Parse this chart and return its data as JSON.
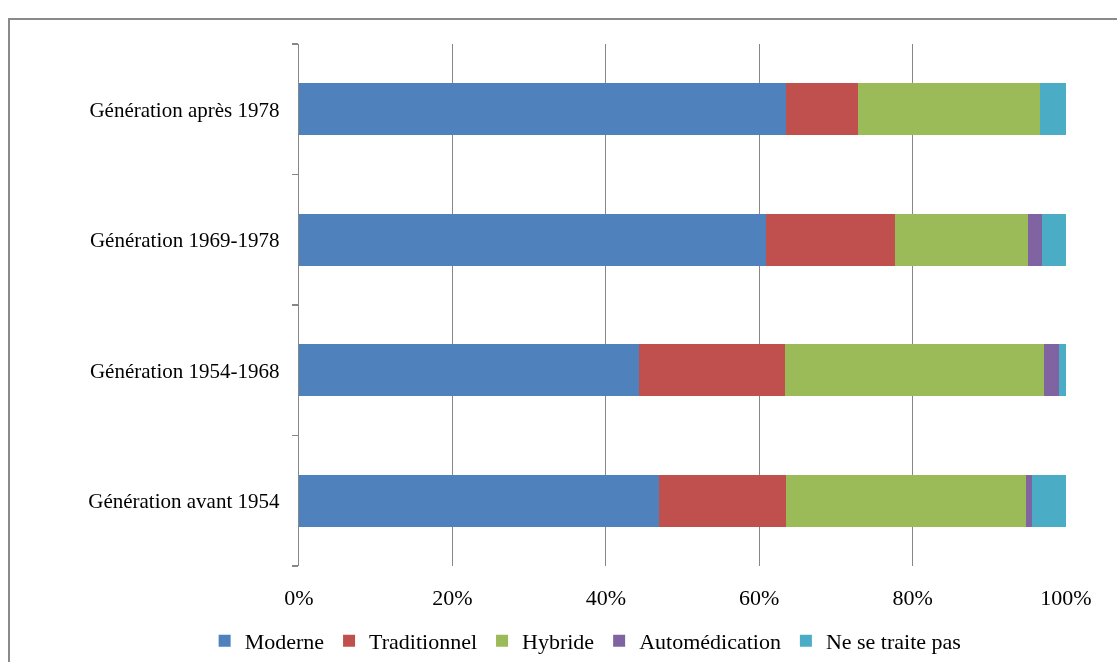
{
  "chart_data": {
    "type": "bar",
    "orientation": "horizontal",
    "stacked": true,
    "categories": [
      "Génération après 1978",
      "Génération 1969-1978",
      "Génération 1954-1968",
      "Génération avant 1954"
    ],
    "series": [
      {
        "name": "Moderne",
        "color": "#4f81bd",
        "values": [
          63.5,
          60.9,
          44.3,
          47.0
        ]
      },
      {
        "name": "Traditionnel",
        "color": "#c0504d",
        "values": [
          9.4,
          16.8,
          19.1,
          16.5
        ]
      },
      {
        "name": "Hybride",
        "color": "#9bbb59",
        "values": [
          23.7,
          17.3,
          33.7,
          31.3
        ]
      },
      {
        "name": "Automédication",
        "color": "#8064a2",
        "values": [
          0,
          1.9,
          2.0,
          0.8
        ]
      },
      {
        "name": "Ne se traite pas",
        "color": "#4bacc6",
        "values": [
          3.4,
          3.1,
          0.9,
          4.4
        ]
      }
    ],
    "xlim": [
      0,
      100
    ],
    "xticks": [
      {
        "value": 0,
        "label": "0%"
      },
      {
        "value": 20,
        "label": "20%"
      },
      {
        "value": 40,
        "label": "40%"
      },
      {
        "value": 60,
        "label": "60%"
      },
      {
        "value": 80,
        "label": "80%"
      },
      {
        "value": 100,
        "label": "100%"
      }
    ],
    "grid": "x",
    "legend": "bottom"
  }
}
